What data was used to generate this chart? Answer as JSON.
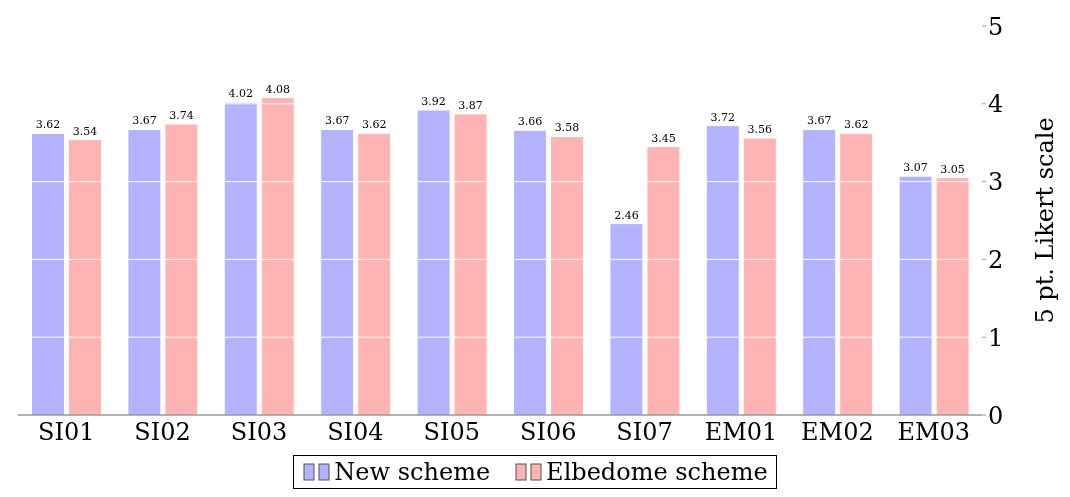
{
  "chart_data": {
    "type": "bar",
    "categories": [
      "SI01",
      "SI02",
      "SI03",
      "SI04",
      "SI05",
      "SI06",
      "SI07",
      "EM01",
      "EM02",
      "EM03"
    ],
    "series": [
      {
        "name": "New scheme",
        "color": "#b3b3ff",
        "values": [
          3.62,
          3.67,
          4.02,
          3.67,
          3.92,
          3.66,
          2.46,
          3.72,
          3.67,
          3.07
        ]
      },
      {
        "name": "Elbedome scheme",
        "color": "#ffb3b3",
        "values": [
          3.54,
          3.74,
          4.08,
          3.62,
          3.87,
          3.58,
          3.45,
          3.56,
          3.62,
          3.05
        ]
      }
    ],
    "ylabel": "5 pt. Likert scale",
    "ylim": [
      0,
      5
    ],
    "yticks": [
      0,
      1,
      2,
      3,
      4,
      5
    ],
    "grid": "y",
    "legend": "bottom",
    "data_labels": true
  }
}
